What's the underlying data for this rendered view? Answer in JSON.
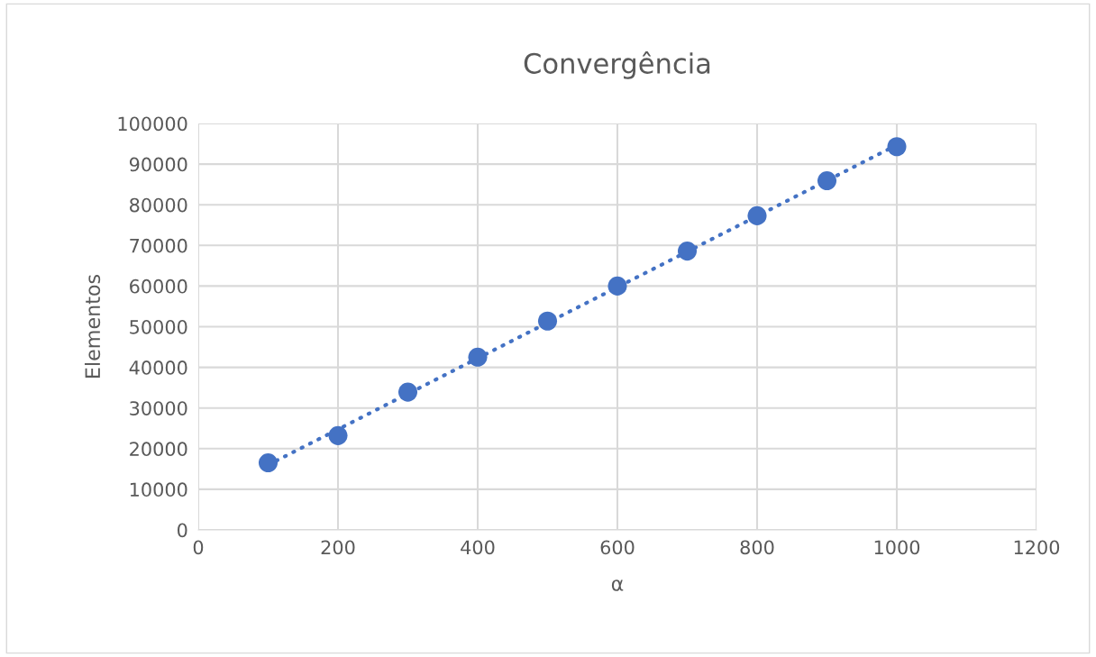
{
  "chart_data": {
    "type": "scatter",
    "title": "Convergência",
    "xlabel": "α",
    "ylabel": "Elementos",
    "xlim": [
      0,
      1200
    ],
    "xticks": [
      0,
      200,
      400,
      600,
      800,
      1000,
      1200
    ],
    "ylim": [
      0,
      100000
    ],
    "yticks": [
      0,
      10000,
      20000,
      30000,
      40000,
      50000,
      60000,
      70000,
      80000,
      90000,
      100000
    ],
    "grid": true,
    "legend": false,
    "series": [
      {
        "type": "line",
        "color": "#4472c4",
        "line_style": "dotted",
        "marker": "none",
        "x": [
          100,
          1000
        ],
        "values": [
          16000,
          94700
        ]
      },
      {
        "color": "#4472c4",
        "marker": "circle",
        "x": [
          100,
          200,
          300,
          400,
          500,
          600,
          700,
          800,
          900,
          1000
        ],
        "values": [
          16500,
          23200,
          33900,
          42500,
          51400,
          60000,
          68600,
          77300,
          85900,
          94300
        ]
      }
    ]
  }
}
